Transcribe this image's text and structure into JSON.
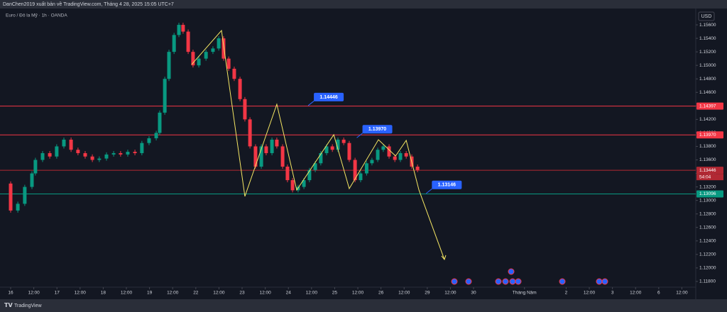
{
  "chart_data": {
    "type": "candlestick",
    "title": "DanChen2019 xuất bản về TradingView.com, Tháng 4 28, 2025 15:05 UTC+7",
    "subtitle": "Euro / Đô la Mỹ · 1h · OANDA",
    "currency": "USD",
    "brand": "TradingView",
    "countdown": "54:04",
    "up_color": "#089981",
    "down_color": "#f23645",
    "x": [
      -0.21,
      0,
      0.31,
      0.61,
      0.92,
      1.07,
      1.38,
      1.69,
      1.99,
      2.3,
      2.61,
      2.91,
      3.22,
      3.53,
      3.83,
      4.14,
      4.45,
      4.75,
      5.06,
      5.37,
      5.67,
      5.98,
      6.29,
      6.44,
      6.66,
      6.84,
      7.06,
      7.27,
      7.45,
      7.67,
      7.88,
      8.13,
      8.44,
      8.74,
      8.99,
      9.2,
      9.42,
      9.66,
      9.91,
      10.12,
      10.34,
      10.58,
      10.83,
      11.04,
      11.29,
      11.5,
      11.75,
      11.96,
      12.18,
      12.42,
      12.67,
      12.91,
      13.16,
      13.4,
      13.65,
      13.9,
      14.14,
      14.39,
      14.63,
      14.88,
      15.12,
      15.38,
      15.61,
      15.86,
      16.1,
      16.35,
      16.6,
      16.84,
      17.09,
      17.33,
      17.58
    ],
    "close": [
      1.1325,
      1.1285,
      1.1295,
      1.132,
      1.134,
      1.136,
      1.137,
      1.1365,
      1.138,
      1.139,
      1.1375,
      1.137,
      1.1365,
      1.136,
      1.1362,
      1.1368,
      1.137,
      1.1368,
      1.1372,
      1.137,
      1.1385,
      1.1392,
      1.14,
      1.143,
      1.148,
      1.152,
      1.1545,
      1.156,
      1.155,
      1.152,
      1.15,
      1.151,
      1.152,
      1.1525,
      1.154,
      1.151,
      1.1495,
      1.148,
      1.145,
      1.142,
      1.138,
      1.135,
      1.138,
      1.137,
      1.139,
      1.138,
      1.135,
      1.133,
      1.1315,
      1.132,
      1.133,
      1.1345,
      1.1355,
      1.137,
      1.138,
      1.1375,
      1.139,
      1.1385,
      1.136,
      1.133,
      1.134,
      1.1355,
      1.136,
      1.1375,
      1.138,
      1.1365,
      1.136,
      1.137,
      1.1365,
      1.135,
      1.1345
    ],
    "zigzag": {
      "color": "#f5e663",
      "x": [
        7.82,
        9.11,
        10.12,
        11.5,
        12.36,
        13.96,
        14.63,
        15.89,
        16.63,
        17.09,
        17.64,
        18.74
      ],
      "y": [
        1.15013,
        1.15516,
        1.1306,
        1.14424,
        1.13154,
        1.13973,
        1.13175,
        1.13899,
        1.13658,
        1.13889,
        1.13154,
        1.12125
      ]
    },
    "levels": [
      {
        "value": 1.14397,
        "label": "1.14397",
        "color": "#f23645"
      },
      {
        "value": 1.1397,
        "label": "1.13970",
        "color": "#f23645"
      },
      {
        "value": 1.13446,
        "label": "1.13446",
        "color": "#b22833"
      },
      {
        "value": 1.13096,
        "label": "1.13096",
        "color": "#089981"
      }
    ],
    "callouts": [
      {
        "x": 13.1,
        "value": 1.14446,
        "label": "1.14446"
      },
      {
        "x": 15.2,
        "value": 1.1397,
        "label": "1.13970"
      },
      {
        "x": 18.2,
        "value": 1.13146,
        "label": "1.13146"
      }
    ],
    "xlim": [
      -0.46,
      29.6
    ],
    "ylim": [
      1.11715,
      1.15842
    ],
    "xticks": [
      {
        "value": 0,
        "label": "16"
      },
      {
        "value": 1,
        "label": "12:00"
      },
      {
        "value": 2,
        "label": "17"
      },
      {
        "value": 3,
        "label": "12:00"
      },
      {
        "value": 4,
        "label": "18"
      },
      {
        "value": 5,
        "label": "12:00"
      },
      {
        "value": 6,
        "label": "19"
      },
      {
        "value": 7,
        "label": "12:00"
      },
      {
        "value": 8,
        "label": "22"
      },
      {
        "value": 9,
        "label": "12:00"
      },
      {
        "value": 10,
        "label": "23"
      },
      {
        "value": 11,
        "label": "12:00"
      },
      {
        "value": 12,
        "label": "24"
      },
      {
        "value": 13,
        "label": "12:00"
      },
      {
        "value": 14,
        "label": "25"
      },
      {
        "value": 15,
        "label": "12:00"
      },
      {
        "value": 16,
        "label": "26"
      },
      {
        "value": 17,
        "label": "12:00"
      },
      {
        "value": 18,
        "label": "29"
      },
      {
        "value": 19,
        "label": "12:00"
      },
      {
        "value": 20,
        "label": "30"
      },
      {
        "value": 22.2,
        "label": "Tháng Năm"
      },
      {
        "value": 24,
        "label": "2"
      },
      {
        "value": 25,
        "label": "12:00"
      },
      {
        "value": 26,
        "label": "3"
      },
      {
        "value": 27,
        "label": "12:00"
      },
      {
        "value": 28,
        "label": "6"
      },
      {
        "value": 29,
        "label": "12:00"
      }
    ],
    "yticks": [
      {
        "value": 1.156,
        "label": "1.15600"
      },
      {
        "value": 1.154,
        "label": "1.15400"
      },
      {
        "value": 1.152,
        "label": "1.15200"
      },
      {
        "value": 1.15,
        "label": "1.15000"
      },
      {
        "value": 1.148,
        "label": "1.14800"
      },
      {
        "value": 1.146,
        "label": "1.14600"
      },
      {
        "value": 1.144,
        "label": "1.14400"
      },
      {
        "value": 1.142,
        "label": "1.14200"
      },
      {
        "value": 1.14,
        "label": "1.14000"
      },
      {
        "value": 1.138,
        "label": "1.13800"
      },
      {
        "value": 1.136,
        "label": "1.13600"
      },
      {
        "value": 1.134,
        "label": "1.13400"
      },
      {
        "value": 1.132,
        "label": "1.13200"
      },
      {
        "value": 1.13,
        "label": "1.13000"
      },
      {
        "value": 1.128,
        "label": "1.12800"
      },
      {
        "value": 1.126,
        "label": "1.12600"
      },
      {
        "value": 1.124,
        "label": "1.12400"
      },
      {
        "value": 1.122,
        "label": "1.12200"
      },
      {
        "value": 1.12,
        "label": "1.12000"
      },
      {
        "value": 1.118,
        "label": "1.11800"
      }
    ]
  }
}
